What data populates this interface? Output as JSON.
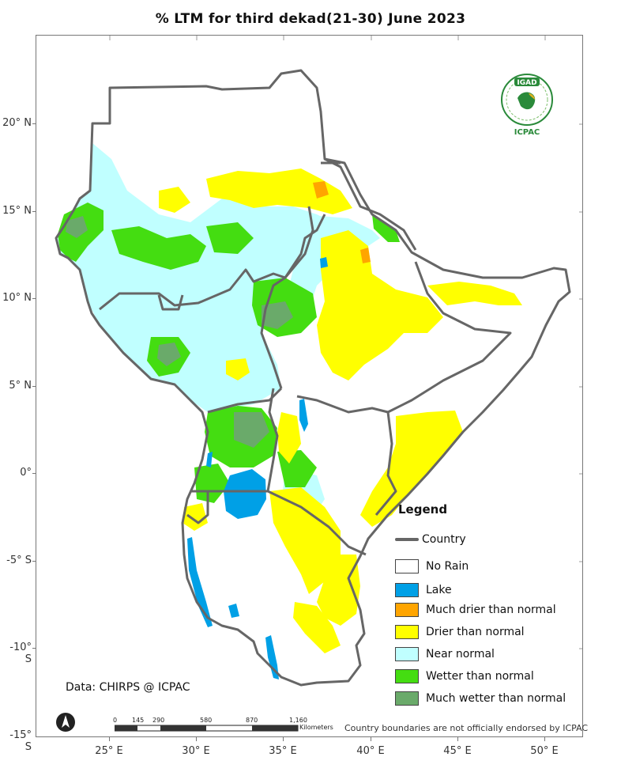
{
  "title": "% LTM  for third dekad(21-30)  June  2023",
  "map": {
    "latitude_labels": [
      "20° N",
      "15° N",
      "10° N",
      "5° N",
      "0°",
      "-5° S",
      "-10° S",
      "-15° S"
    ],
    "longitude_labels": [
      "25° E",
      "30° E",
      "35° E",
      "40° E",
      "45° E",
      "50° E"
    ],
    "colors": {
      "country_border": "#666666",
      "no_rain": "#ffffff",
      "lake": "#00a0e6",
      "much_drier": "#ffa500",
      "drier": "#ffff00",
      "near_normal": "#c0ffff",
      "wetter": "#44dd11",
      "much_wetter": "#6aaa6a"
    }
  },
  "legend": {
    "title": "Legend",
    "country": "Country",
    "items": [
      {
        "label": "No Rain",
        "color": "#ffffff"
      },
      {
        "label": "Lake",
        "color": "#00a0e6"
      },
      {
        "label": "Much drier than normal",
        "color": "#ffa500"
      },
      {
        "label": "Drier than normal",
        "color": "#ffff00"
      },
      {
        "label": "Near normal",
        "color": "#c0ffff"
      },
      {
        "label": "Wetter than normal",
        "color": "#44dd11"
      },
      {
        "label": "Much wetter than normal",
        "color": "#6aaa6a"
      }
    ]
  },
  "credit": "Data: CHIRPS @ ICPAC",
  "scale": {
    "ticks": [
      "0",
      "145",
      "290",
      "580",
      "870",
      "1,160"
    ],
    "unit": "Kilometers"
  },
  "disclaimer": "Country boundaries are not officially endorsed by ICPAC",
  "logo": {
    "top_text": "IGAD",
    "bottom_text": "ICPAC"
  }
}
